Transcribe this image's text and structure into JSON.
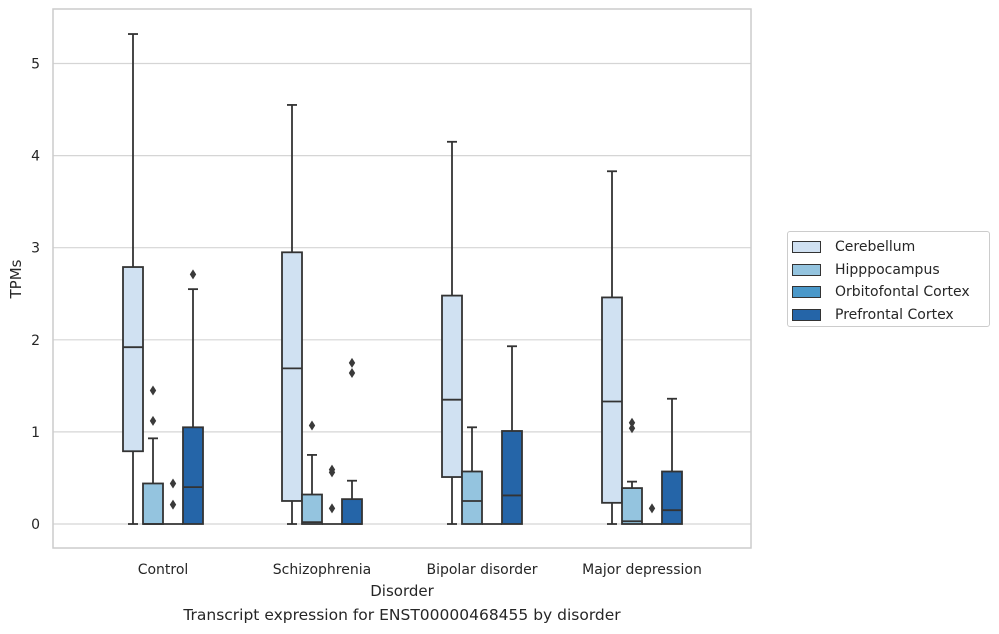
{
  "chart_data": {
    "type": "box",
    "caption": "Transcript expression for ENST00000468455 by disorder",
    "xlabel": "Disorder",
    "ylabel": "TPMs",
    "ylim": [
      -0.25,
      5.6
    ],
    "yticks": [
      0,
      1,
      2,
      3,
      4,
      5
    ],
    "grid": "horizontal",
    "legend_position": "right",
    "categories": [
      "Control",
      "Schizophrenia",
      "Bipolar disorder",
      "Major depression"
    ],
    "series": [
      {
        "name": "Cerebellum",
        "color": "#d0e1f2",
        "boxes": [
          {
            "whisker_low": 0,
            "q1": 0.79,
            "median": 1.92,
            "q3": 2.79,
            "whisker_high": 5.32,
            "outliers": []
          },
          {
            "whisker_low": 0,
            "q1": 0.25,
            "median": 1.69,
            "q3": 2.95,
            "whisker_high": 4.55,
            "outliers": []
          },
          {
            "whisker_low": 0,
            "q1": 0.51,
            "median": 1.35,
            "q3": 2.48,
            "whisker_high": 4.15,
            "outliers": []
          },
          {
            "whisker_low": 0,
            "q1": 0.23,
            "median": 1.33,
            "q3": 2.46,
            "whisker_high": 3.83,
            "outliers": []
          }
        ]
      },
      {
        "name": "Hipppocampus",
        "color": "#94c4df",
        "boxes": [
          {
            "whisker_low": 0,
            "q1": 0,
            "median": 0,
            "q3": 0.44,
            "whisker_high": 0.93,
            "outliers": [
              1.12,
              1.45
            ]
          },
          {
            "whisker_low": 0,
            "q1": 0,
            "median": 0.02,
            "q3": 0.32,
            "whisker_high": 0.75,
            "outliers": [
              1.07
            ]
          },
          {
            "whisker_low": 0,
            "q1": 0,
            "median": 0.25,
            "q3": 0.57,
            "whisker_high": 1.05,
            "outliers": []
          },
          {
            "whisker_low": 0,
            "q1": 0,
            "median": 0.03,
            "q3": 0.39,
            "whisker_high": 0.46,
            "outliers": [
              1.04,
              1.1
            ]
          }
        ]
      },
      {
        "name": "Orbitofontal Cortex",
        "color": "#4a98c9",
        "boxes": [
          {
            "whisker_low": 0,
            "q1": 0,
            "median": 0,
            "q3": 0,
            "whisker_high": 0,
            "outliers": [
              0.21,
              0.44
            ]
          },
          {
            "whisker_low": 0,
            "q1": 0,
            "median": 0,
            "q3": 0,
            "whisker_high": 0,
            "outliers": [
              0.17,
              0.56,
              0.59
            ]
          },
          {
            "whisker_low": 0,
            "q1": 0,
            "median": 0,
            "q3": 0,
            "whisker_high": 0,
            "outliers": []
          },
          {
            "whisker_low": 0,
            "q1": 0,
            "median": 0,
            "q3": 0,
            "whisker_high": 0,
            "outliers": [
              0.17
            ]
          }
        ]
      },
      {
        "name": "Prefrontal Cortex",
        "color": "#2565a8",
        "boxes": [
          {
            "whisker_low": 0,
            "q1": 0,
            "median": 0.4,
            "q3": 1.05,
            "whisker_high": 2.55,
            "outliers": [
              2.71
            ]
          },
          {
            "whisker_low": 0,
            "q1": 0,
            "median": 0,
            "q3": 0.27,
            "whisker_high": 0.47,
            "outliers": [
              1.64,
              1.75
            ]
          },
          {
            "whisker_low": 0,
            "q1": 0,
            "median": 0.31,
            "q3": 1.01,
            "whisker_high": 1.93,
            "outliers": []
          },
          {
            "whisker_low": 0,
            "q1": 0,
            "median": 0.15,
            "q3": 0.57,
            "whisker_high": 1.36,
            "outliers": []
          }
        ]
      }
    ]
  }
}
